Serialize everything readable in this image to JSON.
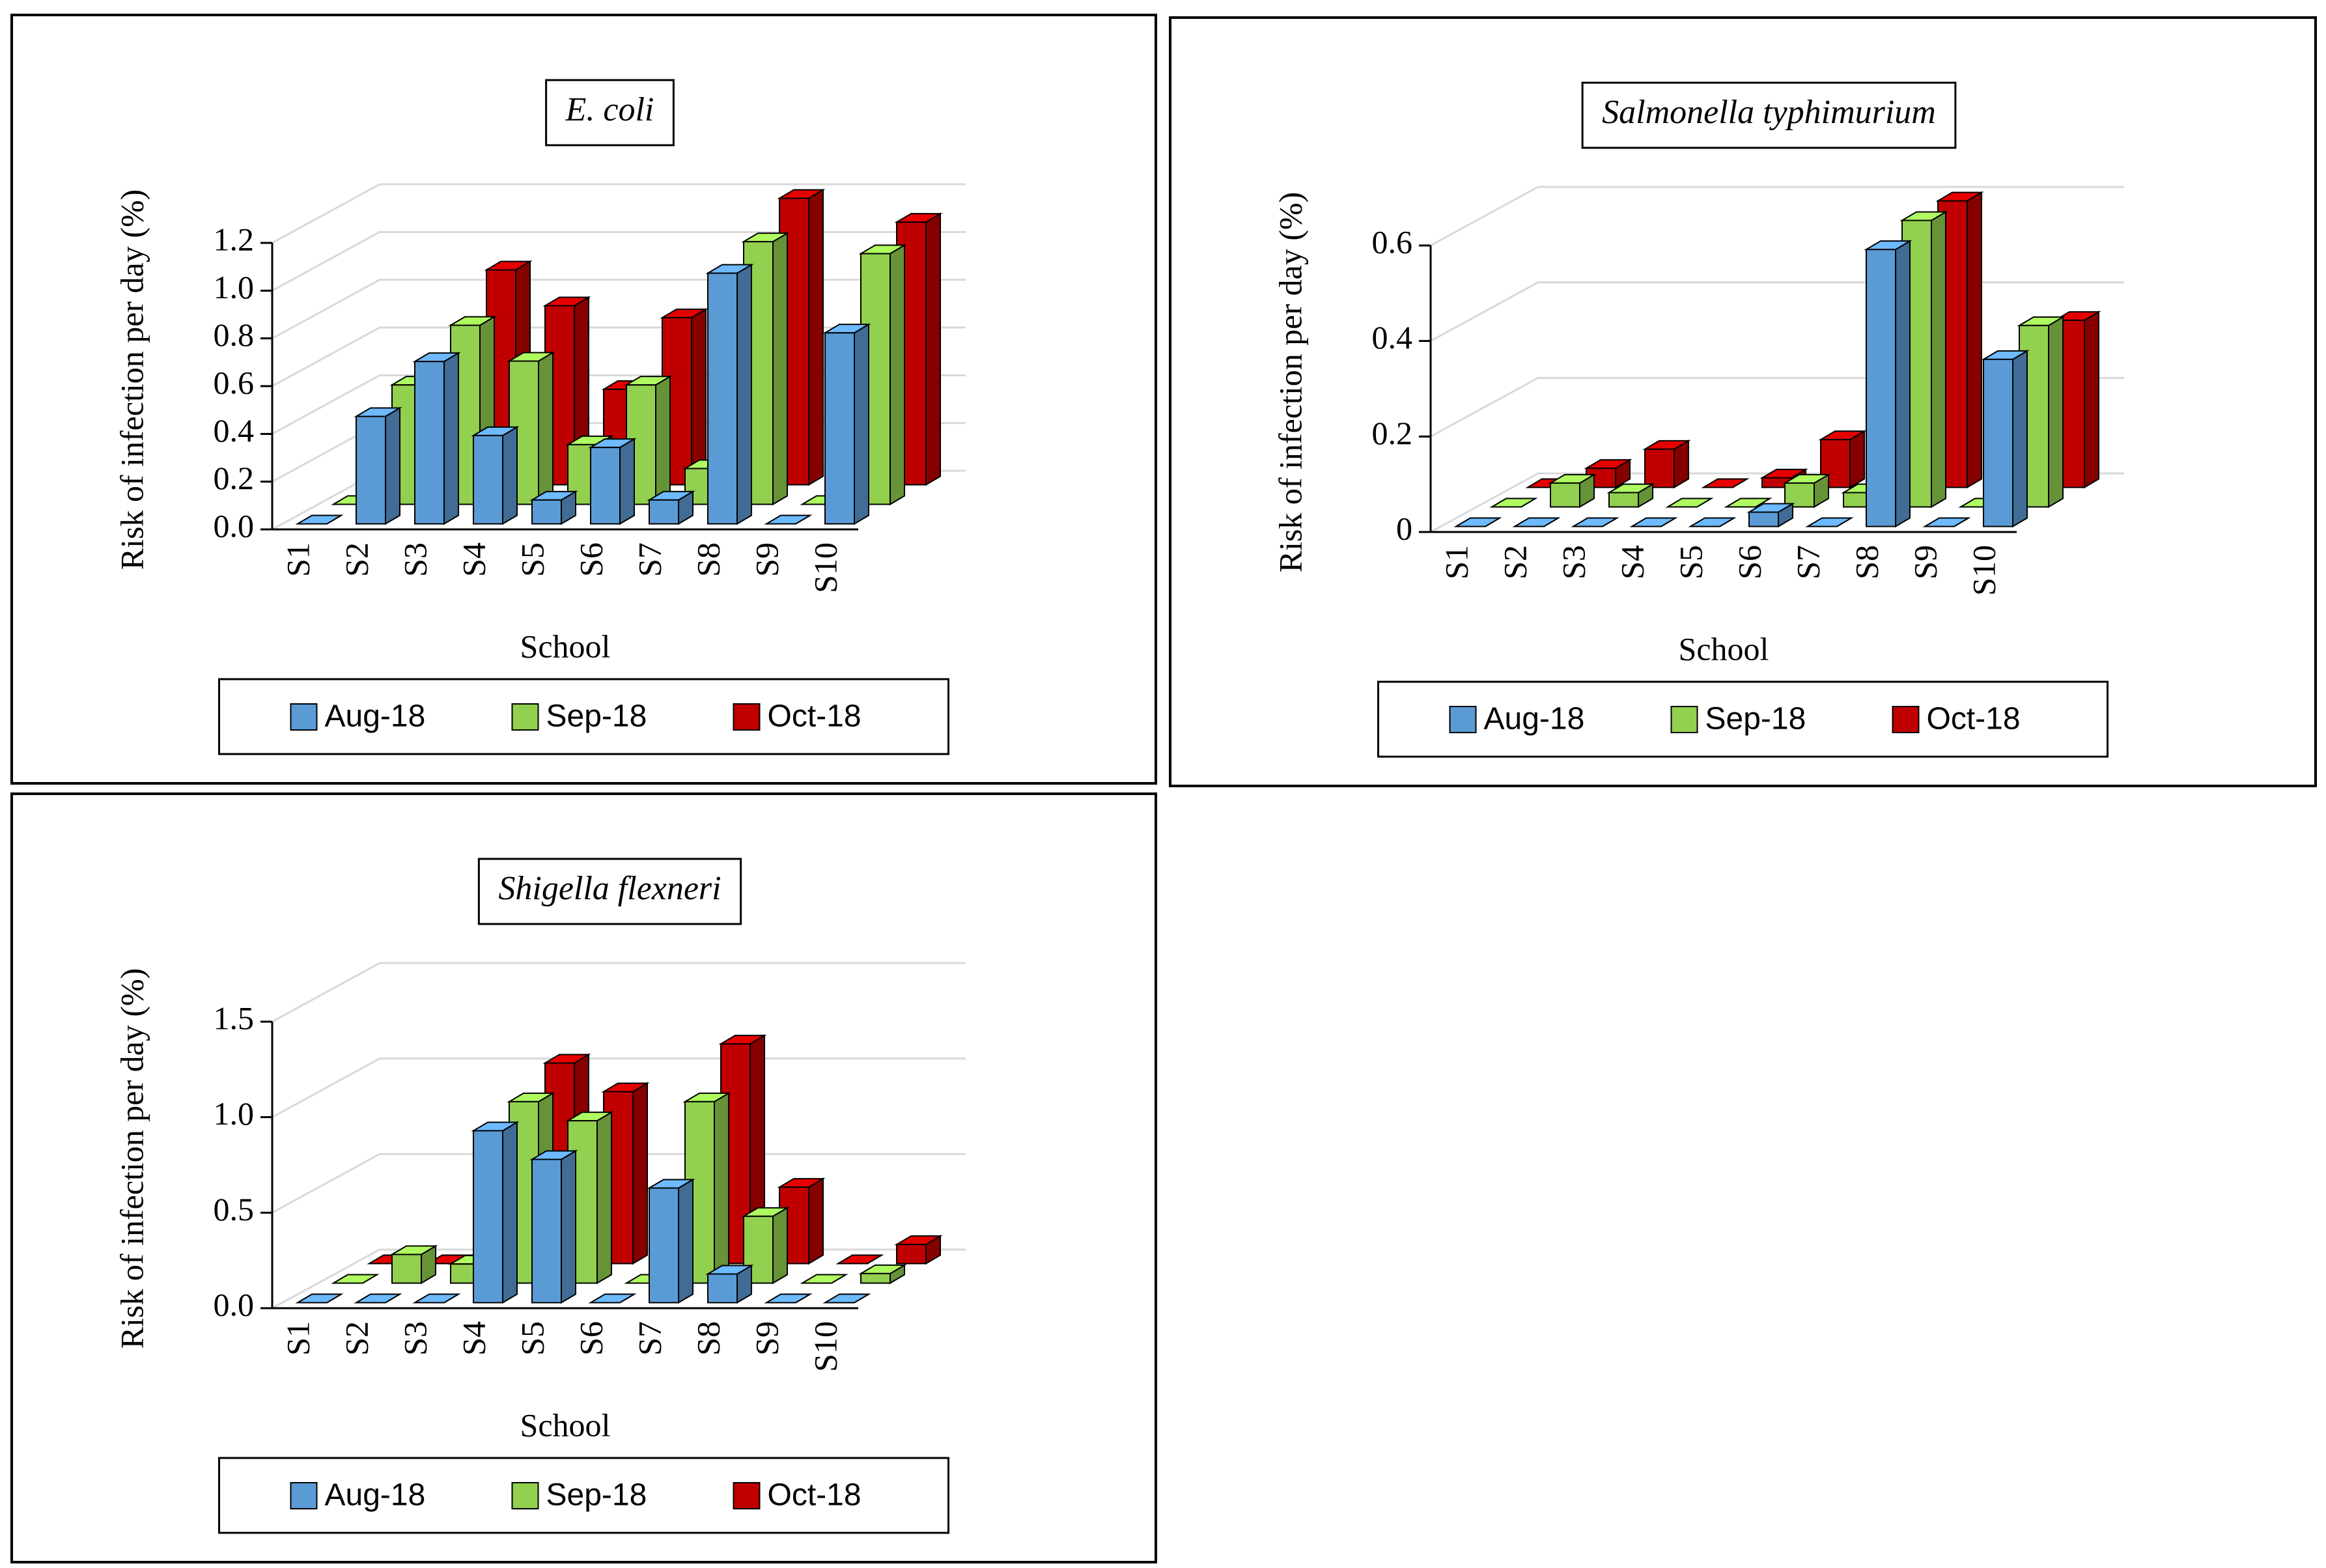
{
  "chart_data": [
    {
      "type": "bar3d",
      "title": "E. coli",
      "x_label": "School",
      "y_label": "Risk of infection per day (%)",
      "categories": [
        "S1",
        "S2",
        "S3",
        "S4",
        "S5",
        "S6",
        "S7",
        "S8",
        "S9",
        "S10"
      ],
      "series": [
        {
          "name": "Aug-18",
          "color": "#5b9bd5",
          "values": [
            0,
            0.45,
            0.68,
            0.37,
            0.1,
            0.32,
            0.1,
            1.05,
            0,
            0.8
          ]
        },
        {
          "name": "Sep-18",
          "color": "#92d050",
          "values": [
            0,
            0.5,
            0.75,
            0.6,
            0.25,
            0.5,
            0.15,
            1.1,
            0,
            1.05
          ]
        },
        {
          "name": "Oct-18",
          "color": "#c00000",
          "values": [
            0,
            0.2,
            0.9,
            0.75,
            0.4,
            0.7,
            0.65,
            1.2,
            0,
            1.1
          ]
        }
      ],
      "ylim": [
        0,
        1.2
      ],
      "yticks": [
        {
          "value": 0,
          "label": "0.0"
        },
        0.2,
        0.4,
        0.6,
        0.8,
        {
          "value": 1,
          "label": "1.0"
        },
        1.2
      ],
      "grid": true,
      "legend": "bottom"
    },
    {
      "type": "bar3d",
      "title": "Salmonella typhimurium",
      "x_label": "School",
      "y_label": "Risk of infection per day (%)",
      "categories": [
        "S1",
        "S2",
        "S3",
        "S4",
        "S5",
        "S6",
        "S7",
        "S8",
        "S9",
        "S10"
      ],
      "series": [
        {
          "name": "Aug-18",
          "color": "#5b9bd5",
          "values": [
            0,
            0,
            0,
            0,
            0,
            0.03,
            0,
            0.58,
            0,
            0.35
          ]
        },
        {
          "name": "Sep-18",
          "color": "#92d050",
          "values": [
            0,
            0.05,
            0.03,
            0,
            0,
            0.05,
            0.03,
            0.6,
            0,
            0.38
          ]
        },
        {
          "name": "Oct-18",
          "color": "#c00000",
          "values": [
            0,
            0.04,
            0.08,
            0,
            0.02,
            0.1,
            0.05,
            0.6,
            0.01,
            0.35
          ]
        }
      ],
      "ylim": [
        0,
        0.6
      ],
      "yticks": [
        0,
        0.2,
        0.4,
        0.6
      ],
      "grid": true,
      "legend": "bottom"
    },
    {
      "type": "bar3d",
      "title": "Shigella flexneri",
      "x_label": "School",
      "y_label": "Risk of infection per day (%)",
      "categories": [
        "S1",
        "S2",
        "S3",
        "S4",
        "S5",
        "S6",
        "S7",
        "S8",
        "S9",
        "S10"
      ],
      "series": [
        {
          "name": "Aug-18",
          "color": "#5b9bd5",
          "values": [
            0,
            0,
            0,
            0.9,
            0.75,
            0,
            0.6,
            0.15,
            0,
            0
          ]
        },
        {
          "name": "Sep-18",
          "color": "#92d050",
          "values": [
            0,
            0.15,
            0.1,
            0.95,
            0.85,
            0,
            0.95,
            0.35,
            0,
            0.05
          ]
        },
        {
          "name": "Oct-18",
          "color": "#c00000",
          "values": [
            0,
            0,
            0.15,
            1.05,
            0.9,
            0.05,
            1.15,
            0.4,
            0,
            0.1
          ]
        }
      ],
      "ylim": [
        0,
        1.5
      ],
      "yticks": [
        {
          "value": 0,
          "label": "0.0"
        },
        0.5,
        {
          "value": 1,
          "label": "1.0"
        },
        1.5
      ],
      "grid": true,
      "legend": "bottom"
    }
  ]
}
